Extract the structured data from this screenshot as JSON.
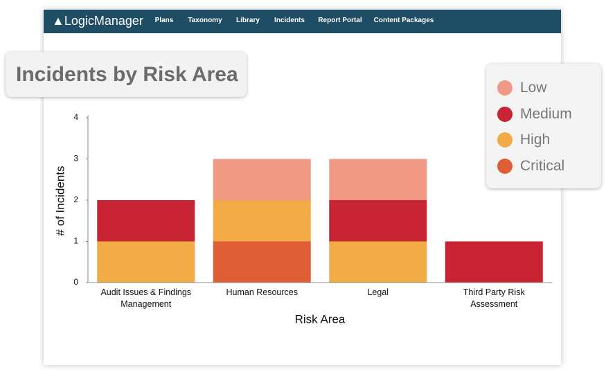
{
  "nav": {
    "logo": "LogicManager",
    "items": [
      "Plans",
      "Taxonomy",
      "Library",
      "Incidents",
      "Report Portal",
      "Content Packages"
    ]
  },
  "chart_data": {
    "type": "stacked-bar",
    "title": "Incidents by Risk Area",
    "x_label": "Risk Area",
    "y_label": "# of Incidents",
    "categories": [
      "Audit Issues & Findings Management",
      "Human Resources",
      "Legal",
      "Third Party Risk Assessment"
    ],
    "series": [
      {
        "name": "Low",
        "color": "#f09a86",
        "values": [
          0,
          1,
          1,
          0
        ]
      },
      {
        "name": "Medium",
        "color": "#c82333",
        "values": [
          1,
          0,
          1,
          1
        ]
      },
      {
        "name": "High",
        "color": "#f3ab47",
        "values": [
          1,
          1,
          1,
          0
        ]
      },
      {
        "name": "Critical",
        "color": "#de5e35",
        "values": [
          0,
          1,
          0,
          0
        ]
      }
    ],
    "stack_order": "bottom-up: Critical, High, Medium, Low",
    "ylim": [
      0,
      4
    ],
    "yticks": [
      0,
      1,
      2,
      3,
      4
    ],
    "legend": "top-right"
  }
}
